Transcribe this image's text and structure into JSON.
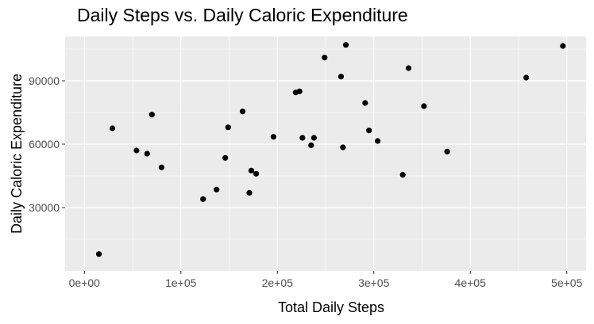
{
  "chart_data": {
    "type": "scatter",
    "title": "Daily Steps vs. Daily Caloric Expenditure",
    "xlabel": "Total Daily Steps",
    "ylabel": "Daily Caloric Expenditure",
    "xlim": [
      -20000,
      520000
    ],
    "ylim": [
      0,
      111000
    ],
    "x_ticks": [
      0,
      100000,
      200000,
      300000,
      400000,
      500000
    ],
    "x_tick_labels": [
      "0e+00",
      "1e+05",
      "2e+05",
      "3e+05",
      "4e+05",
      "5e+05"
    ],
    "y_ticks": [
      30000,
      60000,
      90000
    ],
    "y_tick_labels": [
      "30000",
      "60000",
      "90000"
    ],
    "grid": true,
    "background": "#EBEBEB",
    "grid_color": "#FFFFFF",
    "point_color": "#000000",
    "points": [
      {
        "x": 15000,
        "y": 8000
      },
      {
        "x": 29000,
        "y": 67500
      },
      {
        "x": 54000,
        "y": 57000
      },
      {
        "x": 65000,
        "y": 55500
      },
      {
        "x": 70000,
        "y": 74000
      },
      {
        "x": 80000,
        "y": 49000
      },
      {
        "x": 123000,
        "y": 34000
      },
      {
        "x": 137000,
        "y": 38500
      },
      {
        "x": 146000,
        "y": 53500
      },
      {
        "x": 149000,
        "y": 68000
      },
      {
        "x": 164000,
        "y": 75500
      },
      {
        "x": 171000,
        "y": 37000
      },
      {
        "x": 173000,
        "y": 47500
      },
      {
        "x": 178000,
        "y": 46000
      },
      {
        "x": 196000,
        "y": 63500
      },
      {
        "x": 219000,
        "y": 84500
      },
      {
        "x": 223000,
        "y": 85000
      },
      {
        "x": 226000,
        "y": 63000
      },
      {
        "x": 235000,
        "y": 59500
      },
      {
        "x": 238000,
        "y": 63000
      },
      {
        "x": 249000,
        "y": 101000
      },
      {
        "x": 266000,
        "y": 92000
      },
      {
        "x": 268000,
        "y": 58500
      },
      {
        "x": 271000,
        "y": 107000
      },
      {
        "x": 291000,
        "y": 79500
      },
      {
        "x": 295000,
        "y": 66500
      },
      {
        "x": 304000,
        "y": 61500
      },
      {
        "x": 330000,
        "y": 45500
      },
      {
        "x": 336000,
        "y": 96000
      },
      {
        "x": 352000,
        "y": 78000
      },
      {
        "x": 376000,
        "y": 56500
      },
      {
        "x": 458000,
        "y": 91500
      },
      {
        "x": 496000,
        "y": 106500
      }
    ]
  }
}
